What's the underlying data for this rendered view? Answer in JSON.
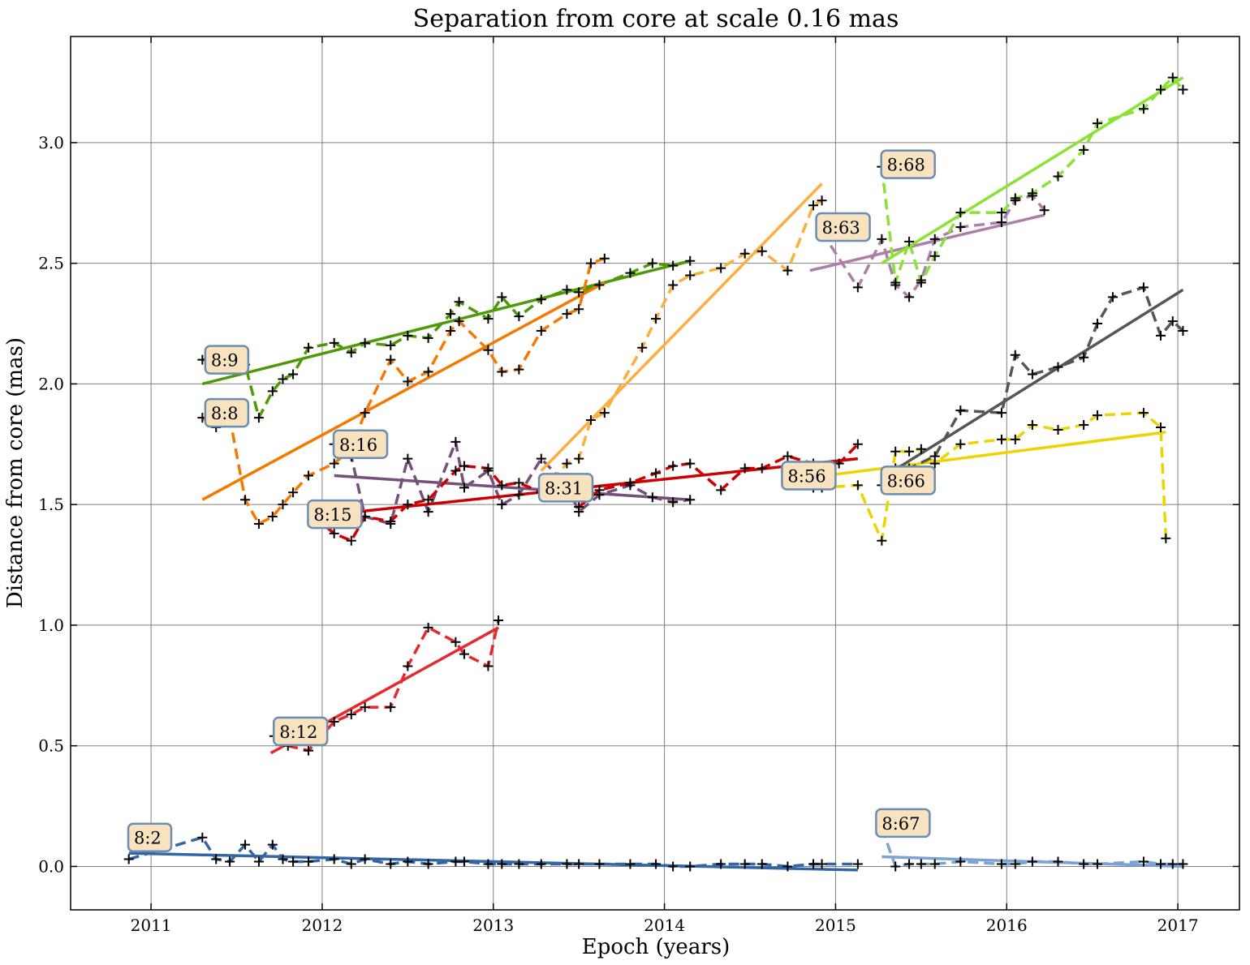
{
  "chart_data": {
    "type": "line",
    "title": "Separation from core at scale 0.16 mas",
    "xlabel": "Epoch (years)",
    "ylabel": "Distance from core (mas)",
    "xlim": [
      2010.53,
      2017.36
    ],
    "ylim": [
      -0.18,
      3.44
    ],
    "xticks": [
      2011,
      2012,
      2013,
      2014,
      2015,
      2016,
      2017
    ],
    "yticks": [
      0.0,
      0.5,
      1.0,
      1.5,
      2.0,
      2.5,
      3.0
    ],
    "xtick_labels": [
      "2011",
      "2012",
      "2013",
      "2014",
      "2015",
      "2016",
      "2017"
    ],
    "ytick_labels": [
      "0.0",
      "0.5",
      "1.0",
      "1.5",
      "2.0",
      "2.5",
      "3.0"
    ],
    "grid": true,
    "series": [
      {
        "name": "8:2",
        "color": "#3465a4",
        "label_at": [
          2010.9,
          0.12
        ],
        "points": [
          [
            2010.87,
            0.03
          ],
          [
            2011.3,
            0.12
          ],
          [
            2011.38,
            0.03
          ],
          [
            2011.46,
            0.02
          ],
          [
            2011.55,
            0.09
          ],
          [
            2011.63,
            0.02
          ],
          [
            2011.71,
            0.09
          ],
          [
            2011.77,
            0.03
          ],
          [
            2011.83,
            0.02
          ],
          [
            2011.92,
            0.02
          ],
          [
            2012.07,
            0.03
          ],
          [
            2012.17,
            0.01
          ],
          [
            2012.25,
            0.03
          ],
          [
            2012.4,
            0.01
          ],
          [
            2012.5,
            0.02
          ],
          [
            2012.62,
            0.01
          ],
          [
            2012.78,
            0.02
          ],
          [
            2012.83,
            0.02
          ],
          [
            2012.97,
            0.01
          ],
          [
            2013.05,
            0.01
          ],
          [
            2013.15,
            0.01
          ],
          [
            2013.28,
            0.01
          ],
          [
            2013.43,
            0.01
          ],
          [
            2013.5,
            0.01
          ],
          [
            2013.62,
            0.01
          ],
          [
            2013.8,
            0.01
          ],
          [
            2013.95,
            0.01
          ],
          [
            2014.05,
            0.0
          ],
          [
            2014.15,
            0.0
          ],
          [
            2014.33,
            0.01
          ],
          [
            2014.47,
            0.01
          ],
          [
            2014.57,
            0.01
          ],
          [
            2014.72,
            0.0
          ],
          [
            2014.87,
            0.01
          ],
          [
            2014.92,
            0.01
          ],
          [
            2015.13,
            0.01
          ]
        ],
        "fit": [
          [
            2010.87,
            0.055
          ],
          [
            2015.13,
            -0.015
          ]
        ]
      },
      {
        "name": "8:67",
        "color": "#7aa3d4",
        "label_at": [
          2015.27,
          0.18
        ],
        "points": [
          [
            2015.27,
            0.16
          ],
          [
            2015.35,
            0.0
          ],
          [
            2015.43,
            0.01
          ],
          [
            2015.5,
            0.01
          ],
          [
            2015.58,
            0.01
          ],
          [
            2015.73,
            0.02
          ],
          [
            2015.97,
            0.01
          ],
          [
            2016.05,
            0.01
          ],
          [
            2016.15,
            0.02
          ],
          [
            2016.3,
            0.02
          ],
          [
            2016.45,
            0.01
          ],
          [
            2016.53,
            0.01
          ],
          [
            2016.8,
            0.02
          ],
          [
            2016.9,
            0.01
          ],
          [
            2016.97,
            0.01
          ],
          [
            2017.03,
            0.01
          ]
        ],
        "fit": [
          [
            2015.27,
            0.04
          ],
          [
            2017.03,
            0.0
          ]
        ]
      },
      {
        "name": "8:12",
        "color": "#e8282e",
        "label_at": [
          2011.75,
          0.56
        ],
        "points": [
          [
            2011.72,
            0.54
          ],
          [
            2011.8,
            0.5
          ],
          [
            2011.92,
            0.48
          ],
          [
            2012.07,
            0.6
          ],
          [
            2012.17,
            0.63
          ],
          [
            2012.25,
            0.66
          ],
          [
            2012.4,
            0.66
          ],
          [
            2012.5,
            0.83
          ],
          [
            2012.62,
            0.99
          ],
          [
            2012.78,
            0.93
          ],
          [
            2012.83,
            0.88
          ],
          [
            2012.97,
            0.83
          ],
          [
            2013.03,
            1.02
          ]
        ],
        "fit": [
          [
            2011.7,
            0.47
          ],
          [
            2013.03,
            0.99
          ]
        ]
      },
      {
        "name": "8:9",
        "color": "#4e9a06",
        "label_at": [
          2011.35,
          2.1
        ],
        "points": [
          [
            2011.3,
            2.1
          ],
          [
            2011.43,
            2.1
          ],
          [
            2011.55,
            2.08
          ],
          [
            2011.63,
            1.86
          ],
          [
            2011.71,
            1.97
          ],
          [
            2011.77,
            2.02
          ],
          [
            2011.83,
            2.04
          ],
          [
            2011.92,
            2.15
          ],
          [
            2012.07,
            2.17
          ],
          [
            2012.17,
            2.13
          ],
          [
            2012.25,
            2.17
          ],
          [
            2012.4,
            2.16
          ],
          [
            2012.5,
            2.2
          ],
          [
            2012.62,
            2.19
          ],
          [
            2012.75,
            2.29
          ],
          [
            2012.8,
            2.34
          ],
          [
            2012.97,
            2.27
          ],
          [
            2013.05,
            2.36
          ],
          [
            2013.15,
            2.28
          ],
          [
            2013.28,
            2.35
          ],
          [
            2013.43,
            2.39
          ],
          [
            2013.5,
            2.38
          ],
          [
            2013.62,
            2.41
          ],
          [
            2013.8,
            2.46
          ],
          [
            2013.93,
            2.5
          ],
          [
            2014.05,
            2.49
          ],
          [
            2014.15,
            2.51
          ]
        ],
        "fit": [
          [
            2011.3,
            2.0
          ],
          [
            2014.15,
            2.51
          ]
        ]
      },
      {
        "name": "8:8",
        "color": "#f57900",
        "label_at": [
          2011.35,
          1.88
        ],
        "points": [
          [
            2011.3,
            1.86
          ],
          [
            2011.38,
            1.82
          ],
          [
            2011.46,
            1.86
          ],
          [
            2011.55,
            1.52
          ],
          [
            2011.63,
            1.42
          ],
          [
            2011.71,
            1.45
          ],
          [
            2011.77,
            1.5
          ],
          [
            2011.83,
            1.55
          ],
          [
            2011.92,
            1.62
          ],
          [
            2012.07,
            1.67
          ],
          [
            2012.17,
            1.73
          ],
          [
            2012.25,
            1.88
          ],
          [
            2012.4,
            2.1
          ],
          [
            2012.5,
            2.01
          ],
          [
            2012.62,
            2.05
          ],
          [
            2012.75,
            2.22
          ],
          [
            2012.8,
            2.26
          ],
          [
            2012.97,
            2.14
          ],
          [
            2013.05,
            2.05
          ],
          [
            2013.15,
            2.06
          ],
          [
            2013.28,
            2.22
          ],
          [
            2013.43,
            2.29
          ],
          [
            2013.5,
            2.31
          ],
          [
            2013.57,
            2.5
          ],
          [
            2013.65,
            2.52
          ]
        ],
        "fit": [
          [
            2011.3,
            1.52
          ],
          [
            2013.65,
            2.42
          ]
        ]
      },
      {
        "name": "8:16",
        "color": "#75507b",
        "label_at": [
          2012.1,
          1.75
        ],
        "points": [
          [
            2012.07,
            1.75
          ],
          [
            2012.17,
            1.7
          ],
          [
            2012.25,
            1.45
          ],
          [
            2012.4,
            1.42
          ],
          [
            2012.5,
            1.69
          ],
          [
            2012.62,
            1.47
          ],
          [
            2012.78,
            1.76
          ],
          [
            2012.83,
            1.57
          ],
          [
            2012.97,
            1.64
          ],
          [
            2013.05,
            1.5
          ],
          [
            2013.15,
            1.54
          ],
          [
            2013.28,
            1.69
          ],
          [
            2013.43,
            1.58
          ],
          [
            2013.5,
            1.47
          ],
          [
            2013.62,
            1.54
          ],
          [
            2013.8,
            1.58
          ],
          [
            2013.93,
            1.53
          ],
          [
            2014.05,
            1.51
          ],
          [
            2014.15,
            1.52
          ]
        ],
        "fit": [
          [
            2012.07,
            1.62
          ],
          [
            2014.15,
            1.52
          ]
        ]
      },
      {
        "name": "8:15",
        "color": "#cc0000",
        "label_at": [
          2011.95,
          1.46
        ],
        "points": [
          [
            2011.95,
            1.45
          ],
          [
            2012.07,
            1.38
          ],
          [
            2012.17,
            1.35
          ],
          [
            2012.25,
            1.45
          ],
          [
            2012.4,
            1.43
          ],
          [
            2012.5,
            1.5
          ],
          [
            2012.62,
            1.52
          ],
          [
            2012.78,
            1.64
          ],
          [
            2012.83,
            1.66
          ],
          [
            2012.97,
            1.65
          ],
          [
            2013.05,
            1.58
          ],
          [
            2013.15,
            1.59
          ],
          [
            2013.28,
            1.55
          ],
          [
            2013.43,
            1.55
          ],
          [
            2013.5,
            1.49
          ],
          [
            2013.62,
            1.56
          ],
          [
            2013.8,
            1.59
          ],
          [
            2013.95,
            1.63
          ],
          [
            2014.05,
            1.66
          ],
          [
            2014.15,
            1.67
          ],
          [
            2014.33,
            1.56
          ],
          [
            2014.47,
            1.65
          ],
          [
            2014.57,
            1.65
          ],
          [
            2014.72,
            1.7
          ],
          [
            2014.87,
            1.67
          ],
          [
            2014.92,
            1.66
          ],
          [
            2015.02,
            1.67
          ],
          [
            2015.13,
            1.75
          ]
        ],
        "fit": [
          [
            2012.07,
            1.46
          ],
          [
            2015.13,
            1.69
          ]
        ]
      },
      {
        "name": "8:31",
        "color": "#fcaf3e",
        "label_at": [
          2013.3,
          1.57
        ],
        "points": [
          [
            2013.28,
            1.55
          ],
          [
            2013.43,
            1.67
          ],
          [
            2013.5,
            1.69
          ],
          [
            2013.57,
            1.85
          ],
          [
            2013.65,
            1.88
          ],
          [
            2013.87,
            2.15
          ],
          [
            2013.95,
            2.27
          ],
          [
            2014.05,
            2.41
          ],
          [
            2014.15,
            2.45
          ],
          [
            2014.33,
            2.48
          ],
          [
            2014.47,
            2.54
          ],
          [
            2014.57,
            2.55
          ],
          [
            2014.72,
            2.47
          ],
          [
            2014.87,
            2.74
          ],
          [
            2014.92,
            2.76
          ]
        ],
        "fit": [
          [
            2013.28,
            1.64
          ],
          [
            2014.92,
            2.83
          ]
        ]
      },
      {
        "name": "8:63",
        "color": "#ad7fa8",
        "label_at": [
          2014.92,
          2.65
        ],
        "points": [
          [
            2014.92,
            2.63
          ],
          [
            2015.13,
            2.4
          ],
          [
            2015.27,
            2.6
          ],
          [
            2015.35,
            2.41
          ],
          [
            2015.43,
            2.36
          ],
          [
            2015.5,
            2.43
          ],
          [
            2015.58,
            2.6
          ],
          [
            2015.73,
            2.65
          ],
          [
            2015.97,
            2.67
          ],
          [
            2016.05,
            2.76
          ],
          [
            2016.15,
            2.78
          ],
          [
            2016.22,
            2.72
          ]
        ],
        "fit": [
          [
            2014.85,
            2.47
          ],
          [
            2016.22,
            2.7
          ]
        ]
      },
      {
        "name": "8:68",
        "color": "#8ae234",
        "label_at": [
          2015.3,
          2.91
        ],
        "points": [
          [
            2015.27,
            2.9
          ],
          [
            2015.35,
            2.42
          ],
          [
            2015.43,
            2.59
          ],
          [
            2015.5,
            2.42
          ],
          [
            2015.58,
            2.53
          ],
          [
            2015.73,
            2.71
          ],
          [
            2015.97,
            2.71
          ],
          [
            2016.05,
            2.77
          ],
          [
            2016.15,
            2.79
          ],
          [
            2016.3,
            2.86
          ],
          [
            2016.45,
            2.97
          ],
          [
            2016.53,
            3.08
          ],
          [
            2016.8,
            3.14
          ],
          [
            2016.9,
            3.22
          ],
          [
            2016.97,
            3.27
          ],
          [
            2017.03,
            3.22
          ]
        ],
        "fit": [
          [
            2015.27,
            2.5
          ],
          [
            2017.03,
            3.27
          ]
        ]
      },
      {
        "name": "8:56",
        "color": "#edd400",
        "label_at": [
          2014.72,
          1.62
        ],
        "points": [
          [
            2014.72,
            1.61
          ],
          [
            2014.87,
            1.57
          ],
          [
            2014.92,
            1.57
          ],
          [
            2015.13,
            1.58
          ],
          [
            2015.27,
            1.35
          ],
          [
            2015.35,
            1.72
          ],
          [
            2015.43,
            1.72
          ],
          [
            2015.5,
            1.73
          ],
          [
            2015.58,
            1.67
          ],
          [
            2015.73,
            1.75
          ],
          [
            2015.97,
            1.77
          ],
          [
            2016.05,
            1.77
          ],
          [
            2016.15,
            1.83
          ],
          [
            2016.3,
            1.81
          ],
          [
            2016.45,
            1.83
          ],
          [
            2016.53,
            1.87
          ],
          [
            2016.8,
            1.88
          ],
          [
            2016.9,
            1.82
          ],
          [
            2016.93,
            1.36
          ]
        ],
        "fit": [
          [
            2014.72,
            1.6
          ],
          [
            2016.93,
            1.8
          ]
        ]
      },
      {
        "name": "8:66",
        "color": "#555753",
        "label_at": [
          2015.3,
          1.6
        ],
        "points": [
          [
            2015.27,
            1.58
          ],
          [
            2015.35,
            1.65
          ],
          [
            2015.43,
            1.65
          ],
          [
            2015.58,
            1.7
          ],
          [
            2015.73,
            1.89
          ],
          [
            2015.97,
            1.88
          ],
          [
            2016.05,
            2.12
          ],
          [
            2016.15,
            2.04
          ],
          [
            2016.3,
            2.07
          ],
          [
            2016.45,
            2.11
          ],
          [
            2016.53,
            2.25
          ],
          [
            2016.62,
            2.36
          ],
          [
            2016.8,
            2.4
          ],
          [
            2016.9,
            2.2
          ],
          [
            2016.97,
            2.26
          ],
          [
            2017.03,
            2.22
          ]
        ],
        "fit": [
          [
            2015.27,
            1.61
          ],
          [
            2017.03,
            2.39
          ]
        ]
      }
    ]
  }
}
